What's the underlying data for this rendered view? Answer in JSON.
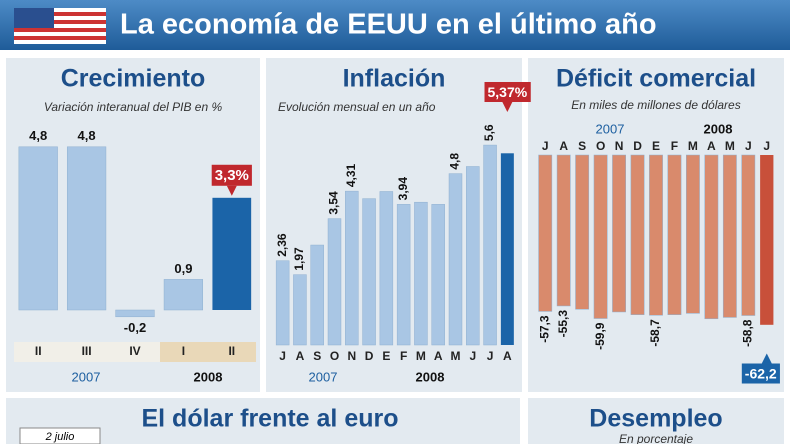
{
  "title": "La economía de EEUU en el último año",
  "chart_data": [
    {
      "type": "bar",
      "title": "Crecimiento",
      "subtitle": "Variación interanual del PIB en %",
      "categories": [
        "II",
        "III",
        "IV",
        "I",
        "II"
      ],
      "values": [
        4.8,
        4.8,
        -0.2,
        0.9,
        3.3
      ],
      "value_labels": [
        "4,8",
        "4,8",
        "-0,2",
        "0,9",
        "3,3%"
      ],
      "years": [
        "2007",
        "2008"
      ],
      "color": "#a9c6e4",
      "highlight_color": "#1b64a8"
    },
    {
      "type": "bar",
      "title": "Inflación",
      "subtitle": "Evolución mensual en un año",
      "categories": [
        "J",
        "A",
        "S",
        "O",
        "N",
        "D",
        "E",
        "F",
        "M",
        "A",
        "M",
        "J",
        "J",
        "A"
      ],
      "values": [
        2.36,
        1.97,
        2.8,
        3.54,
        4.31,
        4.1,
        4.3,
        3.94,
        4.0,
        3.94,
        4.8,
        5.0,
        5.6,
        5.37
      ],
      "value_labels": [
        "2,36",
        "1,97",
        null,
        "3,54",
        "4,31",
        null,
        null,
        "3,94",
        null,
        null,
        "4,8",
        null,
        "5,6",
        "5,37%"
      ],
      "years": [
        "2007",
        "2008"
      ],
      "color": "#a9c6e4",
      "highlight_color": "#1b64a8"
    },
    {
      "type": "bar",
      "title": "Déficit comercial",
      "subtitle": "En miles de millones de dólares",
      "categories": [
        "J",
        "A",
        "S",
        "O",
        "N",
        "D",
        "E",
        "F",
        "M",
        "A",
        "M",
        "J",
        "J"
      ],
      "values": [
        -57.3,
        -55.3,
        -56.5,
        -59.9,
        -57.5,
        -58.5,
        -58.7,
        -58.5,
        -58.0,
        -60.0,
        -59.5,
        -58.8,
        -62.2
      ],
      "value_labels": [
        "-57,3",
        "-55,3",
        null,
        "-59,9",
        null,
        null,
        "-58,7",
        null,
        null,
        null,
        null,
        "-58,8",
        "-62,2"
      ],
      "years": [
        "2007",
        "2008"
      ],
      "color": "#d98a6c",
      "highlight_color": "#c8503a"
    }
  ],
  "bottom": {
    "dollar": {
      "title": "El dólar frente al euro",
      "note": "2 julio"
    },
    "unemployment": {
      "title": "Desempleo",
      "subtitle": "En porcentaje"
    }
  }
}
